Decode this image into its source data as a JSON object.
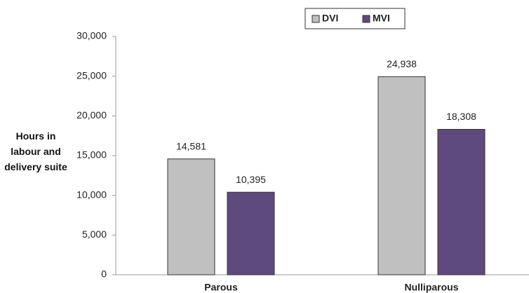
{
  "chart_data": {
    "type": "bar",
    "y_label": "Hours in labour and delivery suite",
    "categories": [
      "Parous",
      "Nulliparous"
    ],
    "series": [
      {
        "name": "DVI",
        "color": "#c0c0c0",
        "values": [
          14581,
          24938
        ],
        "value_labels": [
          "14,581",
          "24,938"
        ]
      },
      {
        "name": "MVI",
        "color": "#5e4a7c",
        "values": [
          10395,
          18308
        ],
        "value_labels": [
          "10,395",
          "18,308"
        ]
      }
    ],
    "ylim": [
      0,
      30000
    ],
    "yticks": [
      {
        "value": 0,
        "label": "0"
      },
      {
        "value": 5000,
        "label": "5,000"
      },
      {
        "value": 10000,
        "label": "10,000"
      },
      {
        "value": 15000,
        "label": "15,000"
      },
      {
        "value": 20000,
        "label": "20,000"
      },
      {
        "value": 25000,
        "label": "25,000"
      },
      {
        "value": 30000,
        "label": "30,000"
      }
    ],
    "grid": false,
    "legend": "top"
  }
}
